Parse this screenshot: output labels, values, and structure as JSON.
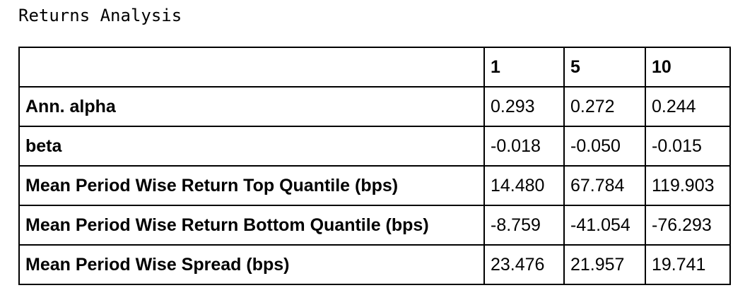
{
  "caption": "Returns Analysis",
  "table": {
    "columns": [
      "",
      "1",
      "5",
      "10"
    ],
    "rows": [
      {
        "label": "Ann. alpha",
        "values": [
          "0.293",
          "0.272",
          "0.244"
        ]
      },
      {
        "label": "beta",
        "values": [
          "-0.018",
          "-0.050",
          "-0.015"
        ]
      },
      {
        "label": "Mean Period Wise Return Top Quantile (bps)",
        "values": [
          "14.480",
          "67.784",
          "119.903"
        ]
      },
      {
        "label": "Mean Period Wise Return Bottom Quantile (bps)",
        "values": [
          "-8.759",
          "-41.054",
          "-76.293"
        ]
      },
      {
        "label": "Mean Period Wise Spread (bps)",
        "values": [
          "23.476",
          "21.957",
          "19.741"
        ]
      }
    ]
  }
}
